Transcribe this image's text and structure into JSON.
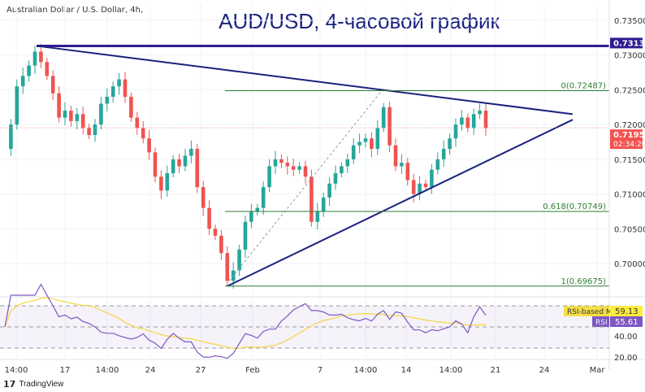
{
  "header": {
    "symbol": "Australian Dollar / U.S. Dollar, 4h,",
    "title": "AUD/USD, 4-часовой график"
  },
  "colors": {
    "up": "#26a69a",
    "down": "#ef5350",
    "trend": "#1a237e",
    "level": "#311b92",
    "fib": "#2e7d32",
    "rsi": "#7e57c2",
    "rsi_ma": "#f5d742"
  },
  "chart_data": {
    "type": "candlestick",
    "ylim": [
      0.696,
      0.7375
    ],
    "y_ticks": [
      "0.73500",
      "0.73000",
      "0.72500",
      "0.72000",
      "0.71500",
      "0.71000",
      "0.70500",
      "0.70000"
    ],
    "x_ticks": [
      "14:00",
      "17",
      "14:00",
      "24",
      "27",
      "Feb",
      "7",
      "14:00",
      "14",
      "14:00",
      "21",
      "24",
      "Mar"
    ],
    "closes": [
      0.7165,
      0.72,
      0.7255,
      0.727,
      0.7285,
      0.7305,
      0.729,
      0.727,
      0.7245,
      0.721,
      0.722,
      0.7205,
      0.7215,
      0.7195,
      0.7185,
      0.72,
      0.723,
      0.724,
      0.7255,
      0.7265,
      0.724,
      0.721,
      0.7195,
      0.718,
      0.716,
      0.7125,
      0.7105,
      0.713,
      0.715,
      0.714,
      0.7155,
      0.7165,
      0.711,
      0.708,
      0.705,
      0.704,
      0.7015,
      0.6975,
      0.699,
      0.702,
      0.706,
      0.7075,
      0.708,
      0.711,
      0.714,
      0.715,
      0.7145,
      0.714,
      0.7135,
      0.714,
      0.7125,
      0.706,
      0.7075,
      0.7095,
      0.7115,
      0.713,
      0.714,
      0.715,
      0.717,
      0.7175,
      0.718,
      0.7165,
      0.7195,
      0.7225,
      0.717,
      0.714,
      0.7145,
      0.712,
      0.71,
      0.7115,
      0.711,
      0.7135,
      0.715,
      0.7165,
      0.718,
      0.72,
      0.721,
      0.7195,
      0.7215,
      0.722,
      0.7195
    ],
    "resistance_level": {
      "label": "0.73132",
      "value": 0.73132
    },
    "current_price": {
      "label": "0.71954",
      "value": 0.71954,
      "countdown": "02:34:20"
    },
    "fib_levels": [
      {
        "label": "0(0.72487)",
        "value": 0.72487
      },
      {
        "label": "0.618(0.70749)",
        "value": 0.70749
      },
      {
        "label": "1(0.69675)",
        "value": 0.69675
      }
    ],
    "triangle": {
      "upper": [
        [
          0,
          0.73132
        ],
        [
          1,
          0.7215
        ]
      ],
      "lower": [
        [
          0.36,
          0.69675
        ],
        [
          1,
          0.7207
        ]
      ]
    },
    "rsi": {
      "label": "RSI",
      "value": "55.61",
      "ma_label": "RSI-based MA",
      "ma_value": "59.13",
      "ticks": [
        "40.00",
        "20.00"
      ],
      "bands": [
        70,
        50,
        30
      ]
    }
  },
  "footer": {
    "brand": "TradingView"
  }
}
